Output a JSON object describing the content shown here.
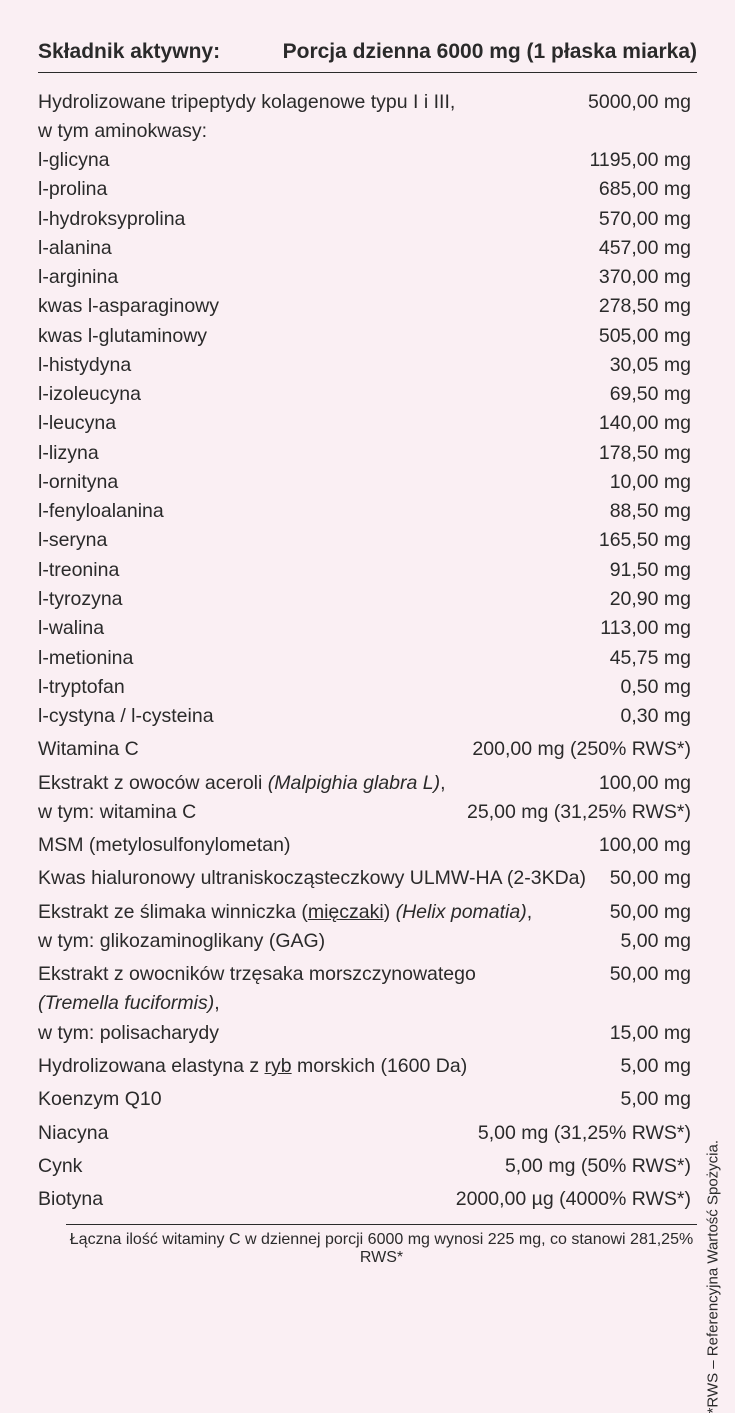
{
  "header": {
    "left": "Składnik aktywny:",
    "right": "Porcja dzienna 6000 mg (1 płaska miarka)"
  },
  "rows": [
    {
      "name": "Hydrolizowane tripeptydy kolagenowe typu I i III,",
      "val": "5000,00 mg",
      "group_start": true
    },
    {
      "name": "w tym aminokwasy:",
      "val": ""
    },
    {
      "name": "l-glicyna",
      "val": "1195,00 mg"
    },
    {
      "name": "l-prolina",
      "val": "685,00 mg"
    },
    {
      "name": "l-hydroksyprolina",
      "val": "570,00 mg"
    },
    {
      "name": "l-alanina",
      "val": "457,00 mg"
    },
    {
      "name": "l-arginina",
      "val": "370,00 mg"
    },
    {
      "name": "kwas l-asparaginowy",
      "val": "278,50 mg"
    },
    {
      "name": "kwas l-glutaminowy",
      "val": "505,00 mg"
    },
    {
      "name": "l-histydyna",
      "val": "30,05 mg"
    },
    {
      "name": "l-izoleucyna",
      "val": "69,50 mg"
    },
    {
      "name": "l-leucyna",
      "val": "140,00 mg"
    },
    {
      "name": "l-lizyna",
      "val": "178,50 mg"
    },
    {
      "name": "l-ornityna",
      "val": "10,00 mg"
    },
    {
      "name": "l-fenyloalanina",
      "val": "88,50 mg"
    },
    {
      "name": "l-seryna",
      "val": "165,50 mg"
    },
    {
      "name": "l-treonina",
      "val": "91,50 mg"
    },
    {
      "name": "l-tyrozyna",
      "val": "20,90 mg"
    },
    {
      "name": "l-walina",
      "val": "113,00 mg"
    },
    {
      "name": "l-metionina",
      "val": "45,75 mg"
    },
    {
      "name": "l-tryptofan",
      "val": "0,50 mg"
    },
    {
      "name": "l-cystyna / l-cysteina",
      "val": "0,30 mg"
    },
    {
      "name": "Witamina C",
      "val": "200,00 mg (250% RWS*)",
      "group_start": true
    },
    {
      "name_html": "Ekstrakt z owoców aceroli <span class=\"italic\">(Malpighia glabra L)</span>,",
      "val": "100,00 mg",
      "group_start": true
    },
    {
      "name": "w tym: witamina C",
      "val": "25,00 mg (31,25% RWS*)"
    },
    {
      "name": "MSM (metylosulfonylometan)",
      "val": "100,00 mg",
      "group_start": true
    },
    {
      "name": "Kwas hialuronowy ultraniskocząsteczkowy ULMW-HA (2-3KDa)",
      "val": "50,00 mg",
      "group_start": true
    },
    {
      "name_html": "Ekstrakt ze ślimaka winniczka (<span class=\"underline\">mięczaki</span>) <span class=\"italic\">(Helix pomatia)</span>,",
      "val": "50,00 mg",
      "group_start": true
    },
    {
      "name": "w tym: glikozaminoglikany (GAG)",
      "val": "5,00 mg"
    },
    {
      "name": "Ekstrakt z owocników trzęsaka morszczynowatego",
      "val": "50,00 mg",
      "group_start": true
    },
    {
      "name_html": "<span class=\"italic\">(Tremella fuciformis)</span>,",
      "val": ""
    },
    {
      "name": "w tym: polisacharydy",
      "val": "15,00 mg"
    },
    {
      "name_html": "Hydrolizowana elastyna z <span class=\"underline\">ryb</span> morskich (1600 Da)",
      "val": "5,00 mg",
      "group_start": true
    },
    {
      "name": "Koenzym Q10",
      "val": "5,00 mg",
      "group_start": true
    },
    {
      "name": "Niacyna",
      "val": "5,00 mg (31,25% RWS*)",
      "group_start": true
    },
    {
      "name": "Cynk",
      "val": "5,00 mg (50% RWS*)",
      "group_start": true
    },
    {
      "name": "Biotyna",
      "val": "2000,00 µg (4000% RWS*)",
      "group_start": true
    }
  ],
  "footnote": "Łączna ilość witaminy C w dziennej porcji 6000 mg wynosi 225 mg, co stanowi 281,25% RWS*",
  "side_note": "*RWS – Referencyjna Wartość Spożycia.",
  "colors": {
    "background": "#faeff3",
    "text": "#2a2a2a",
    "border": "#2a2a2a"
  },
  "typography": {
    "header_fontsize": 21,
    "row_fontsize": 19.5,
    "footnote_fontsize": 16,
    "side_fontsize": 15,
    "header_weight": 700
  }
}
